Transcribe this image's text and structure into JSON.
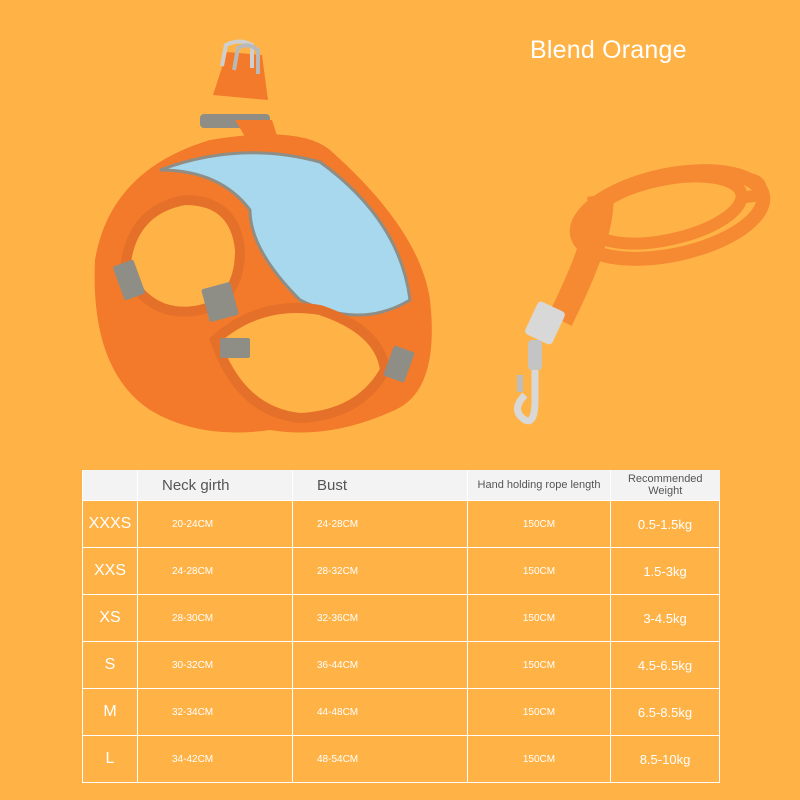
{
  "title": "Blend Orange",
  "colors": {
    "background": "#FFB347",
    "harness_orange": "#F27A2A",
    "mesh_blue": "#A8D8EE",
    "reflective_gray": "#8E8E86",
    "leash_orange": "#F58A32",
    "clip_silver": "#D8D8D8",
    "header_bg": "#F3F3F3",
    "text_white": "#FFFFFF"
  },
  "images": {
    "harness": "harness-product-image",
    "leash": "leash-product-image"
  },
  "table": {
    "headers": {
      "size": "",
      "neck": "Neck girth",
      "bust": "Bust",
      "rope": "Hand holding rope length",
      "weight": "Recommended Weight"
    },
    "rows": [
      {
        "size": "XXXS",
        "neck": "20-24CM",
        "bust": "24-28CM",
        "rope": "150CM",
        "weight": "0.5-1.5kg"
      },
      {
        "size": "XXS",
        "neck": "24-28CM",
        "bust": "28-32CM",
        "rope": "150CM",
        "weight": "1.5-3kg"
      },
      {
        "size": "XS",
        "neck": "28-30CM",
        "bust": "32-36CM",
        "rope": "150CM",
        "weight": "3-4.5kg"
      },
      {
        "size": "S",
        "neck": "30-32CM",
        "bust": "36-44CM",
        "rope": "150CM",
        "weight": "4.5-6.5kg"
      },
      {
        "size": "M",
        "neck": "32-34CM",
        "bust": "44-48CM",
        "rope": "150CM",
        "weight": "6.5-8.5kg"
      },
      {
        "size": "L",
        "neck": "34-42CM",
        "bust": "48-54CM",
        "rope": "150CM",
        "weight": "8.5-10kg"
      }
    ]
  }
}
